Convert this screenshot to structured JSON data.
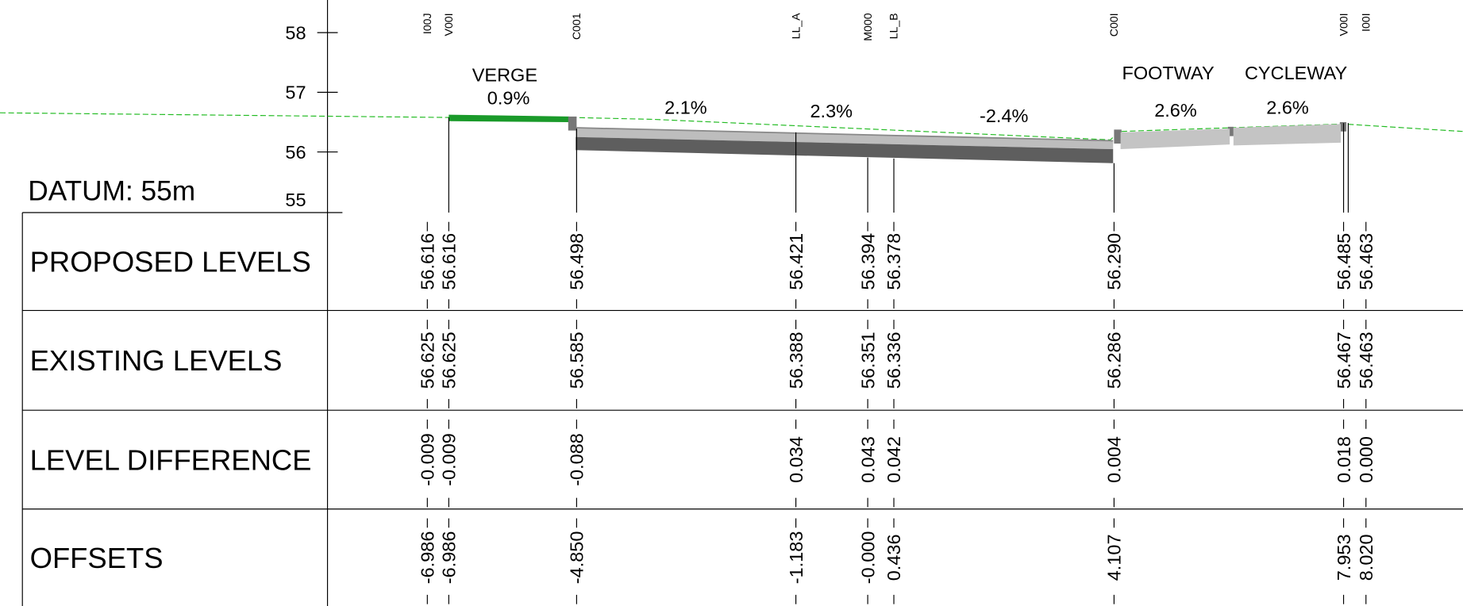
{
  "datum": "DATUM:  55m",
  "axis": {
    "ticks": [
      "58",
      "57",
      "56",
      "55"
    ]
  },
  "points": [
    "I00J",
    "V00I",
    "C001",
    "LL_A",
    "M000",
    "LL_B",
    "C00I",
    "V00I",
    "I00I"
  ],
  "annotations": [
    "VERGE",
    "0.9%",
    "2.1%",
    "2.3%",
    "-2.4%",
    "FOOTWAY",
    "CYCLEWAY",
    "2.6%",
    "2.6%"
  ],
  "table": {
    "rows": [
      {
        "label": "PROPOSED LEVELS",
        "values": [
          "56.616",
          "56.616",
          "56.498",
          "56.421",
          "56.394",
          "56.378",
          "56.290",
          "56.485",
          "56.463"
        ]
      },
      {
        "label": "EXISTING LEVELS",
        "values": [
          "56.625",
          "56.625",
          "56.585",
          "56.388",
          "56.351",
          "56.336",
          "56.286",
          "56.467",
          "56.463"
        ]
      },
      {
        "label": "LEVEL DIFFERENCE",
        "values": [
          "-0.009",
          "-0.009",
          "-0.088",
          "0.034",
          "0.043",
          "0.042",
          "0.004",
          "0.018",
          "0.000"
        ]
      },
      {
        "label": "OFFSETS",
        "values": [
          "-6.986",
          "-6.986",
          "-4.850",
          "-1.183",
          "-0.000",
          "0.436",
          "4.107",
          "7.953",
          "8.020"
        ]
      }
    ]
  }
}
